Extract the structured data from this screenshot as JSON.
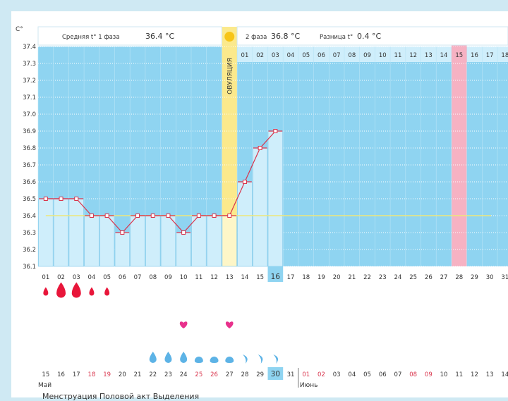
{
  "colors": {
    "background": "#cfe9f3",
    "plot_bg": "#8fd4f1",
    "bar": "#cfeefb",
    "grid": "#ffffff",
    "line": "#d9344c",
    "coverline": "#eee77a",
    "ovulation": "#fbe98c",
    "ovulation_light": "#fdf6c8",
    "highlight_day": "#f6b2c3",
    "current_day_bg": "#8fd4f1",
    "menstruation": "#e8163a",
    "discharge": "#5db3e6",
    "heart": "#e8318c",
    "moon": "#f0a020"
  },
  "header": {
    "unit": "C°",
    "phase1_text": "Средняя t° 1 фаза",
    "phase1_value": "36.4 °C",
    "phase2_text": "2 фаза",
    "phase2_value": "36.8 °C",
    "diff_text": "Разница t°",
    "diff_value": "0.4 °C"
  },
  "ovulation_label": "ОВУЛЯЦИЯ",
  "chart_data": {
    "type": "line",
    "title": "",
    "ylabel": "C°",
    "ylim": [
      36.1,
      37.4
    ],
    "yticks": [
      "36.1",
      "36.2",
      "36.3",
      "36.4",
      "36.5",
      "36.6",
      "36.7",
      "36.8",
      "36.9",
      "37.0",
      "37.1",
      "37.2",
      "37.3",
      "37.4"
    ],
    "cycle_days": [
      "01",
      "02",
      "03",
      "04",
      "05",
      "06",
      "07",
      "08",
      "09",
      "10",
      "11",
      "12",
      "13",
      "14",
      "15",
      "16",
      "17",
      "18",
      "19",
      "20",
      "21",
      "22",
      "23",
      "24",
      "25",
      "26",
      "27",
      "28",
      "29",
      "30",
      "31"
    ],
    "temperatures": [
      36.5,
      36.5,
      36.5,
      36.4,
      36.4,
      36.3,
      36.4,
      36.4,
      36.4,
      36.3,
      36.4,
      36.4,
      36.4,
      36.6,
      36.8,
      36.9
    ],
    "coverline": 36.4,
    "ovulation_day": 13,
    "current_day": 16,
    "highlight_day": 28,
    "phase2_day_labels": [
      "01",
      "02",
      "03",
      "04",
      "05",
      "06",
      "07",
      "08",
      "09",
      "10",
      "11",
      "12",
      "13",
      "14",
      "15",
      "16",
      "17",
      "18"
    ],
    "phase2_highlight_label": "15",
    "menstruation_days": [
      1,
      2,
      3,
      4,
      5
    ],
    "menstruation_sizes": [
      "small",
      "large",
      "large",
      "small",
      "small"
    ],
    "intercourse_days": [
      10,
      13
    ],
    "discharge_days": [
      8,
      9,
      10,
      11,
      12,
      13,
      14,
      15,
      16
    ],
    "discharge_shapes": [
      "drop",
      "drop",
      "drop",
      "round",
      "round",
      "round",
      "crescent",
      "crescent",
      "crescent"
    ],
    "moon_day": 16,
    "calendar_dates": [
      "15",
      "16",
      "17",
      "18",
      "19",
      "20",
      "21",
      "22",
      "23",
      "24",
      "25",
      "26",
      "27",
      "28",
      "29",
      "30",
      "31",
      "01",
      "02",
      "03",
      "04",
      "05",
      "06",
      "07",
      "08",
      "09",
      "10",
      "11",
      "12",
      "13",
      "14"
    ],
    "calendar_weekend_days": [
      4,
      5,
      11,
      12,
      18,
      19,
      25,
      26
    ],
    "calendar_today_day": 16,
    "months": [
      {
        "label": "Май",
        "start_day": 1
      },
      {
        "label": "Июнь",
        "start_day": 18
      }
    ]
  },
  "bottom_text": "Менструация    Половой акт    Выделения"
}
